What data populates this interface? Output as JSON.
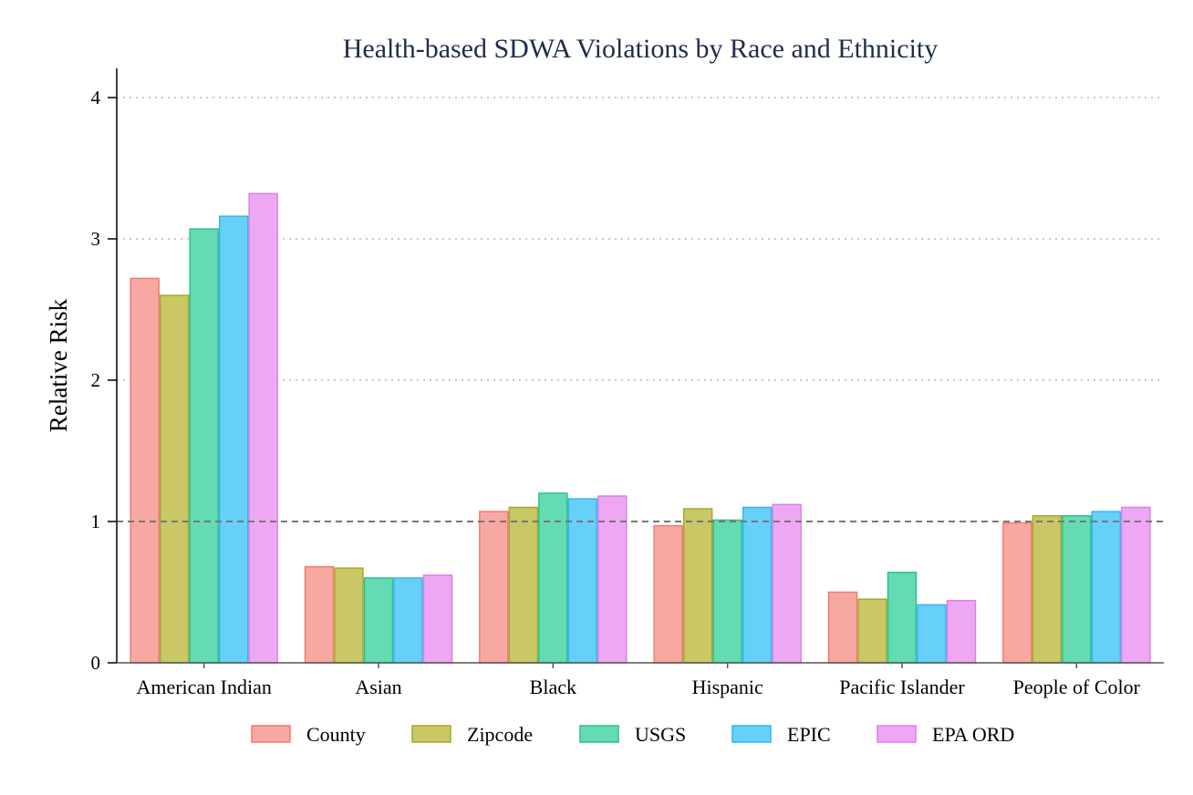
{
  "chart_data": {
    "type": "bar",
    "title": "Health-based SDWA Violations by Race and Ethnicity",
    "xlabel": "",
    "ylabel": "Relative Risk",
    "ylim": [
      0,
      4.2
    ],
    "yticks": [
      0,
      1,
      2,
      3,
      4
    ],
    "grid": "horizontal dotted",
    "reference_line": 1,
    "legend_position": "bottom",
    "categories": [
      "American Indian",
      "Asian",
      "Black",
      "Hispanic",
      "Pacific Islander",
      "People of Color"
    ],
    "series": [
      {
        "name": "County",
        "fill": "#f8a8a2",
        "stroke": "#f07a72",
        "values": [
          2.72,
          0.68,
          1.07,
          0.97,
          0.5,
          0.99
        ]
      },
      {
        "name": "Zipcode",
        "fill": "#c9c766",
        "stroke": "#a9a72e",
        "values": [
          2.6,
          0.67,
          1.1,
          1.09,
          0.45,
          1.04
        ]
      },
      {
        "name": "USGS",
        "fill": "#64dbb2",
        "stroke": "#2fbf8e",
        "values": [
          3.07,
          0.6,
          1.2,
          1.01,
          0.64,
          1.04
        ]
      },
      {
        "name": "EPIC",
        "fill": "#66d0f8",
        "stroke": "#33b6ef",
        "values": [
          3.16,
          0.6,
          1.16,
          1.1,
          0.41,
          1.07
        ]
      },
      {
        "name": "EPA ORD",
        "fill": "#eea8f3",
        "stroke": "#dc7fe6",
        "values": [
          3.32,
          0.62,
          1.18,
          1.12,
          0.44,
          1.1
        ]
      }
    ]
  }
}
